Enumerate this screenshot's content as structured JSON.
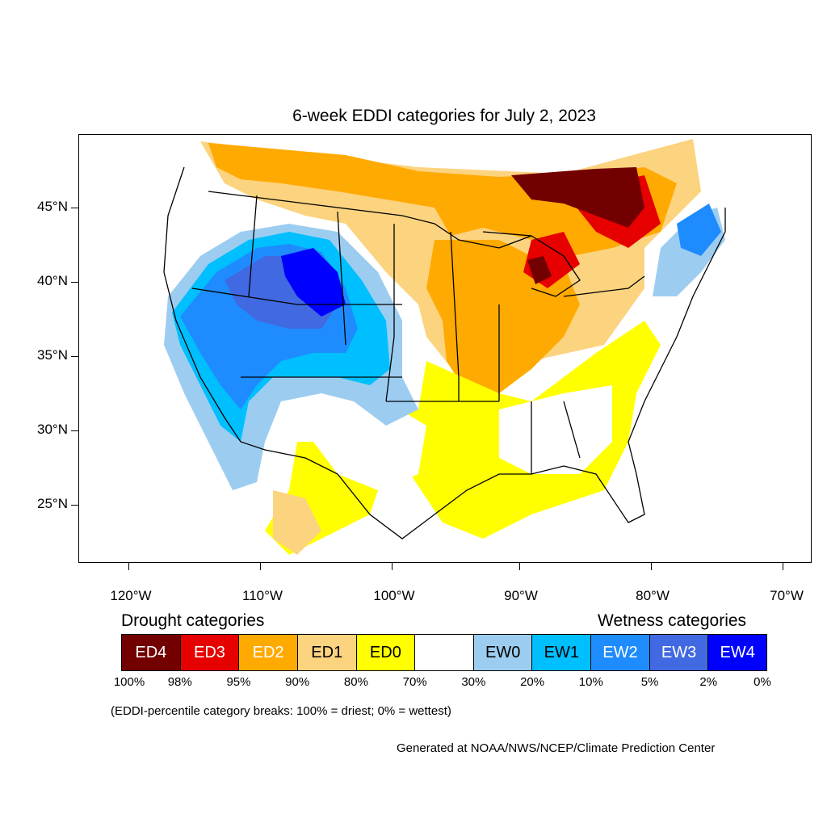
{
  "title": "6-week EDDI categories for July 2, 2023",
  "latitude_labels": [
    "45°N",
    "40°N",
    "35°N",
    "30°N",
    "25°N"
  ],
  "longitude_labels": [
    "120°W",
    "110°W",
    "100°W",
    "90°W",
    "80°W",
    "70°W"
  ],
  "legend": {
    "drought_heading": "Drought categories",
    "wetness_heading": "Wetness categories",
    "categories": [
      {
        "label": "ED4",
        "color": "#730000",
        "text_color": "#ffffff"
      },
      {
        "label": "ED3",
        "color": "#e60000",
        "text_color": "#ffffff"
      },
      {
        "label": "ED2",
        "color": "#ffaa00",
        "text_color": "#ffffff"
      },
      {
        "label": "ED1",
        "color": "#fcd37f",
        "text_color": "#000000"
      },
      {
        "label": "ED0",
        "color": "#ffff00",
        "text_color": "#000000"
      },
      {
        "label": "",
        "color": "#ffffff",
        "text_color": "#000000"
      },
      {
        "label": "EW0",
        "color": "#9ccdf0",
        "text_color": "#000000"
      },
      {
        "label": "EW1",
        "color": "#00bfff",
        "text_color": "#000000"
      },
      {
        "label": "EW2",
        "color": "#1e8cff",
        "text_color": "#ffffff"
      },
      {
        "label": "EW3",
        "color": "#4169e1",
        "text_color": "#ffffff"
      },
      {
        "label": "EW4",
        "color": "#0000ff",
        "text_color": "#ffffff"
      }
    ],
    "percentile_labels": [
      "100%",
      "98%",
      "95%",
      "90%",
      "80%",
      "70%",
      "30%",
      "20%",
      "10%",
      "5%",
      "2%",
      "0%"
    ],
    "footnote": "(EDDI-percentile category breaks: 100% = driest; 0% = wettest)"
  },
  "credit": "Generated at NOAA/NWS/NCEP/Climate Prediction Center",
  "colors": {
    "ED4": "#730000",
    "ED3": "#e60000",
    "ED2": "#ffaa00",
    "ED1": "#fcd37f",
    "ED0": "#ffff00",
    "EW0": "#9ccdf0",
    "EW1": "#00bfff",
    "EW2": "#1e8cff",
    "EW3": "#4169e1",
    "EW4": "#0000ff"
  }
}
